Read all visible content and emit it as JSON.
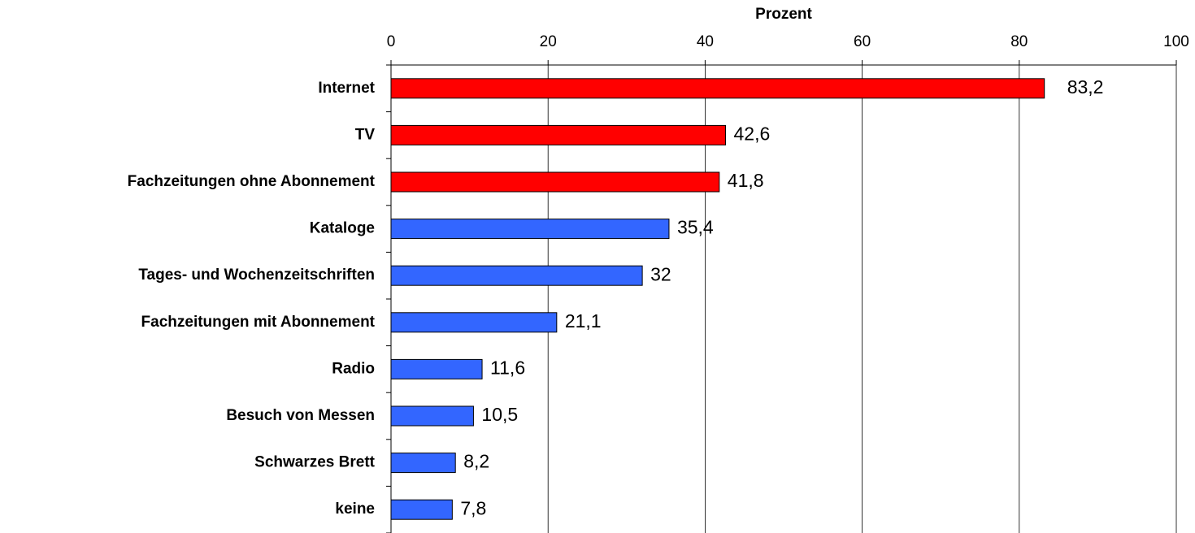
{
  "chart_data": {
    "type": "bar",
    "orientation": "horizontal",
    "x_label": "Prozent",
    "categories": [
      "Internet",
      "TV",
      "Fachzeitungen ohne Abonnement",
      "Kataloge",
      "Tages- und Wochenzeitschriften",
      "Fachzeitungen mit Abonnement",
      "Radio",
      "Besuch von Messen",
      "Schwarzes Brett",
      "keine"
    ],
    "values": [
      83.2,
      42.6,
      41.8,
      35.4,
      32,
      21.1,
      11.6,
      10.5,
      8.2,
      7.8
    ],
    "value_labels": [
      "83,2",
      "42,6",
      "41,8",
      "35,4",
      "32",
      "21,1",
      "11,6",
      "10,5",
      "8,2",
      "7,8"
    ],
    "colors": [
      "#ff0000",
      "#ff0000",
      "#ff0000",
      "#3366ff",
      "#3366ff",
      "#3366ff",
      "#3366ff",
      "#3366ff",
      "#3366ff",
      "#3366ff"
    ],
    "xlim": [
      0,
      100
    ],
    "xticks": [
      0,
      20,
      40,
      60,
      80,
      100
    ],
    "grid": true
  }
}
